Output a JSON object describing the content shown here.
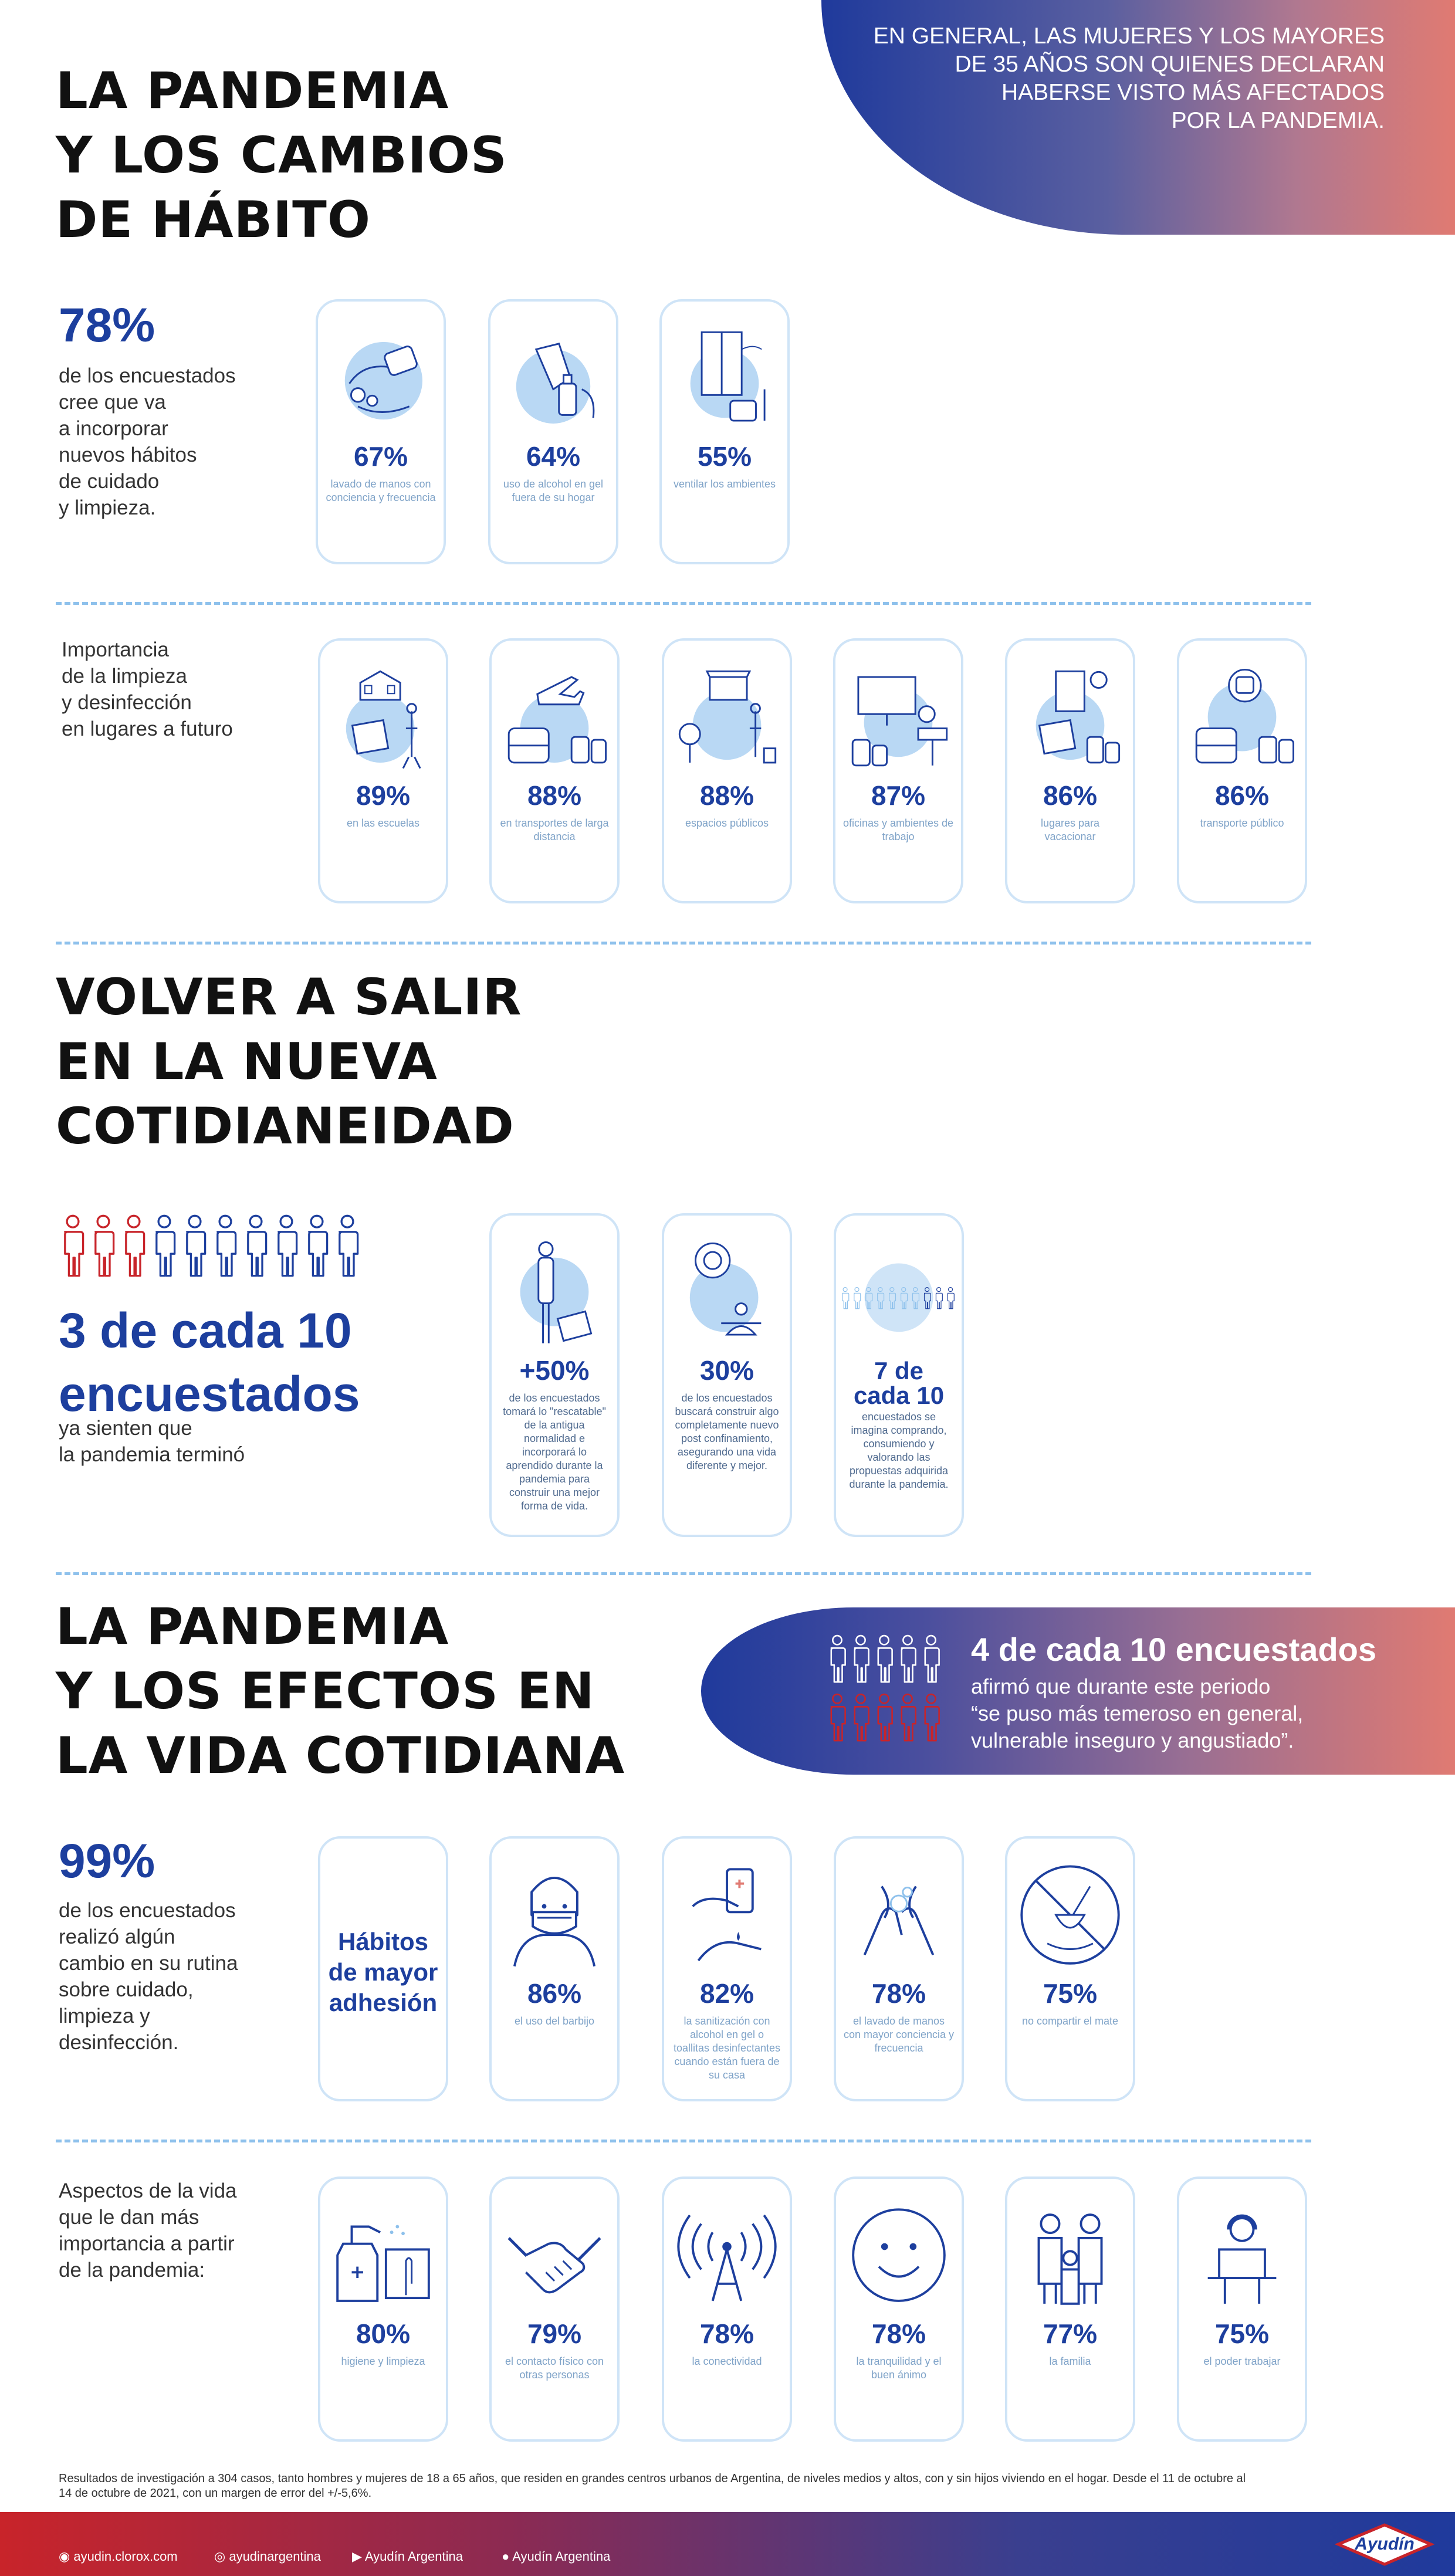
{
  "top_banner": {
    "text_lines": [
      "EN GENERAL, LAS MUJERES Y LOS MAYORES",
      "DE 35 AÑOS SON QUIENES DECLARAN",
      "HABERSE VISTO MÁS AFECTADOS",
      "POR LA PANDEMIA."
    ]
  },
  "section1": {
    "title_lines": [
      "LA PANDEMIA",
      "Y LOS CAMBIOS",
      "DE HÁBITO"
    ],
    "stat": "78%",
    "stat_text_lines": [
      "de los encuestados",
      "cree que va",
      "a incorporar",
      "nuevos hábitos",
      "de cuidado",
      "y limpieza."
    ],
    "cards": [
      {
        "icon": "handwashing-icon",
        "pct": "67%",
        "label": "lavado de manos con conciencia y frecuencia"
      },
      {
        "icon": "alcohol-gel-icon",
        "pct": "64%",
        "label": "uso de alcohol en gel fuera de su hogar"
      },
      {
        "icon": "window-ventilation-icon",
        "pct": "55%",
        "label": "ventilar los ambientes"
      }
    ],
    "future_text_lines": [
      "Importancia",
      "de la limpieza",
      "y desinfección",
      "en lugares a futuro"
    ],
    "future_cards": [
      {
        "icon": "school-cleaning-icon",
        "pct": "89%",
        "label": "en las escuelas"
      },
      {
        "icon": "airplane-bus-icon",
        "pct": "88%",
        "label": "en transportes de larga distancia"
      },
      {
        "icon": "public-space-icon",
        "pct": "88%",
        "label": "espacios públicos"
      },
      {
        "icon": "office-icon",
        "pct": "87%",
        "label": "oficinas y ambientes de trabajo"
      },
      {
        "icon": "hotel-icon",
        "pct": "86%",
        "label": "lugares para vacacionar"
      },
      {
        "icon": "public-transport-icon",
        "pct": "86%",
        "label": "transporte público"
      }
    ]
  },
  "section2": {
    "title_lines": [
      "VOLVER A SALIR",
      "EN LA NUEVA",
      "COTIDIANEIDAD"
    ],
    "people_highlight": 3,
    "people_total": 10,
    "stat_lines": [
      "3 de cada 10",
      "encuestados"
    ],
    "stat_text_lines": [
      "ya sienten que",
      "la pandemia terminó"
    ],
    "cards": [
      {
        "icon": "person-cleaning-icon",
        "pct": "+50%",
        "label": "de los encuestados tomará lo \"rescatable\" de la antigua normalidad e incorporará lo aprendido durante la pandemia para construir una mejor forma de vida."
      },
      {
        "icon": "meditation-icon",
        "pct": "30%",
        "label": "de los encuestados buscará construir algo completamente nuevo post confinamiento, asegurando una vida diferente y mejor."
      },
      {
        "icon": "people-group-icon",
        "pct_lines": [
          "7 de",
          "cada 10"
        ],
        "label": "encuestados se imagina comprando, consumiendo y valorando las propuestas adquirida durante la pandemia."
      }
    ]
  },
  "section3": {
    "title_lines": [
      "LA PANDEMIA",
      "Y LOS EFECTOS EN",
      "LA VIDA COTIDIANA"
    ],
    "banner": {
      "headline": "4 de cada 10 encuestados",
      "text_lines": [
        "afirmó que durante este periodo",
        "“se puso más temeroso en general,",
        "vulnerable inseguro y angustiado”."
      ]
    },
    "stat": "99%",
    "stat_text_lines": [
      "de los encuestados",
      "realizó algún",
      "cambio en su rutina",
      "sobre cuidado,",
      "limpieza y",
      "desinfección."
    ],
    "habits_card_lines": [
      "Hábitos",
      "de mayor",
      "adhesión"
    ],
    "habit_cards": [
      {
        "icon": "face-mask-icon",
        "pct": "86%",
        "label": "el uso del barbijo"
      },
      {
        "icon": "sanitizer-icon",
        "pct": "82%",
        "label": "la sanitización con alcohol en gel o toallitas desinfectantes cuando están fuera de su casa"
      },
      {
        "icon": "hand-wash-icon",
        "pct": "78%",
        "label": "el lavado de manos con mayor conciencia y frecuencia"
      },
      {
        "icon": "no-mate-icon",
        "pct": "75%",
        "label": "no compartir el mate"
      }
    ],
    "aspects_text_lines": [
      "Aspectos de la vida",
      "que le dan más",
      "importancia a partir",
      "de la pandemia:"
    ],
    "aspect_cards": [
      {
        "icon": "cleaning-spray-icon",
        "pct": "80%",
        "label": "higiene y limpieza"
      },
      {
        "icon": "handshake-icon",
        "pct": "79%",
        "label": "el contacto físico con otras personas"
      },
      {
        "icon": "antenna-icon",
        "pct": "78%",
        "label": "la conectividad"
      },
      {
        "icon": "smiley-icon",
        "pct": "78%",
        "label": "la tranquilidad y el buen ánimo"
      },
      {
        "icon": "family-icon",
        "pct": "77%",
        "label": "la familia"
      },
      {
        "icon": "work-desk-icon",
        "pct": "75%",
        "label": "el poder trabajar"
      }
    ]
  },
  "footnote": "Resultados de investigación a 304 casos, tanto hombres y mujeres de 18 a 65 años, que residen en grandes centros urbanos de Argentina, de niveles medios y altos, con y sin hijos viviendo en el hogar. Desde el 11 de octubre al 14 de octubre de 2021, con un margen de error del +/-5,6%.",
  "footer": {
    "web": "ayudin.clorox.com",
    "instagram": "ayudinargentina",
    "youtube": "Ayudín Argentina",
    "facebook": "Ayudín Argentina",
    "logo": "Ayudín"
  },
  "colors": {
    "blue": "#1d3f9e",
    "light_blue": "#cfe4f7",
    "red": "#c8242a",
    "coral": "#e07a72"
  }
}
